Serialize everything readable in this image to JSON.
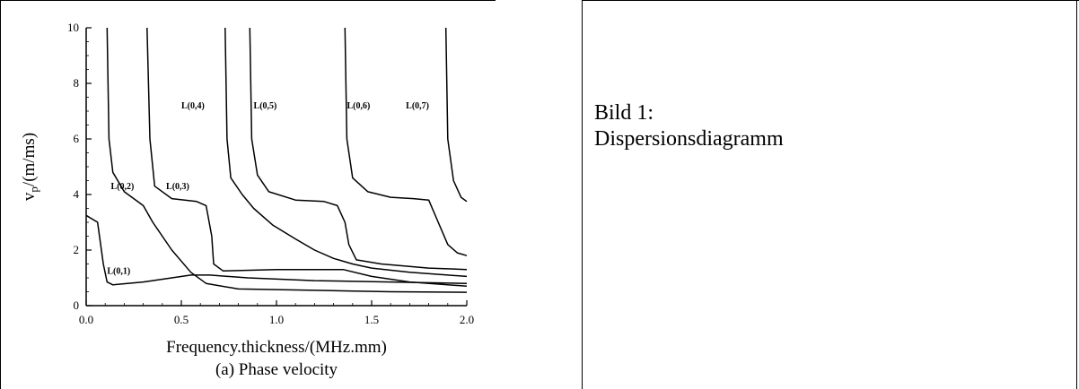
{
  "caption": {
    "line1": "Bild 1:",
    "line2": "Dispersionsdiagramm"
  },
  "chart_data": {
    "type": "line",
    "title": "",
    "subtitle": "(a) Phase velocity",
    "xlabel": "Frequency.thickness/(MHz.mm)",
    "ylabel_main": "v",
    "ylabel_sub": "p",
    "ylabel_rest": "/(m/ms)",
    "xlim": [
      0,
      2
    ],
    "ylim": [
      0,
      10
    ],
    "grid": false,
    "x_ticks": [
      {
        "value": 0,
        "label": "0.0"
      },
      {
        "value": 0.5,
        "label": "0.5"
      },
      {
        "value": 1,
        "label": "1.0"
      },
      {
        "value": 1.5,
        "label": "1.5"
      },
      {
        "value": 2,
        "label": "2.0"
      }
    ],
    "y_ticks": [
      {
        "value": 0,
        "label": "0"
      },
      {
        "value": 2,
        "label": "2"
      },
      {
        "value": 4,
        "label": "4"
      },
      {
        "value": 6,
        "label": "6"
      },
      {
        "value": 8,
        "label": "8"
      },
      {
        "value": 10,
        "label": "10"
      }
    ],
    "series": [
      {
        "name": "L(0,1)",
        "points": [
          [
            0,
            3.25
          ],
          [
            0.06,
            3.0
          ],
          [
            0.09,
            1.5
          ],
          [
            0.11,
            0.85
          ],
          [
            0.14,
            0.75
          ],
          [
            0.3,
            0.85
          ],
          [
            0.45,
            1.0
          ],
          [
            0.55,
            1.1
          ],
          [
            0.65,
            1.1
          ],
          [
            0.85,
            1.0
          ],
          [
            1.2,
            0.9
          ],
          [
            1.6,
            0.85
          ],
          [
            2.0,
            0.8
          ]
        ]
      },
      {
        "name": "L(0,2)",
        "points": [
          [
            0.11,
            10
          ],
          [
            0.12,
            6.0
          ],
          [
            0.14,
            4.8
          ],
          [
            0.2,
            4.1
          ],
          [
            0.3,
            3.6
          ],
          [
            0.35,
            3.0
          ],
          [
            0.45,
            2.0
          ],
          [
            0.55,
            1.2
          ],
          [
            0.63,
            0.8
          ],
          [
            0.8,
            0.6
          ],
          [
            1.2,
            0.55
          ],
          [
            1.6,
            0.5
          ],
          [
            2.0,
            0.48
          ]
        ]
      },
      {
        "name": "L(0,3)",
        "points": [
          [
            0.32,
            10
          ],
          [
            0.335,
            6.0
          ],
          [
            0.36,
            4.3
          ],
          [
            0.45,
            3.85
          ],
          [
            0.58,
            3.75
          ],
          [
            0.63,
            3.6
          ],
          [
            0.66,
            2.5
          ],
          [
            0.67,
            1.5
          ],
          [
            0.72,
            1.25
          ],
          [
            1.0,
            1.3
          ],
          [
            1.35,
            1.3
          ],
          [
            1.5,
            1.05
          ],
          [
            1.7,
            0.85
          ],
          [
            2.0,
            0.7
          ]
        ]
      },
      {
        "name": "L(0,4)",
        "points": [
          [
            0.73,
            10
          ],
          [
            0.74,
            6.0
          ],
          [
            0.76,
            4.6
          ],
          [
            0.82,
            4.0
          ],
          [
            0.88,
            3.5
          ],
          [
            0.98,
            2.9
          ],
          [
            1.1,
            2.4
          ],
          [
            1.2,
            2.0
          ],
          [
            1.3,
            1.7
          ],
          [
            1.4,
            1.5
          ],
          [
            1.5,
            1.35
          ],
          [
            1.7,
            1.2
          ],
          [
            2.0,
            1.05
          ]
        ]
      },
      {
        "name": "L(0,5)",
        "points": [
          [
            0.86,
            10
          ],
          [
            0.87,
            6.0
          ],
          [
            0.9,
            4.7
          ],
          [
            0.96,
            4.1
          ],
          [
            1.1,
            3.8
          ],
          [
            1.25,
            3.75
          ],
          [
            1.32,
            3.6
          ],
          [
            1.36,
            3.0
          ],
          [
            1.38,
            2.2
          ],
          [
            1.42,
            1.65
          ],
          [
            1.55,
            1.5
          ],
          [
            1.8,
            1.35
          ],
          [
            2.0,
            1.3
          ]
        ]
      },
      {
        "name": "L(0,6)",
        "points": [
          [
            1.36,
            10
          ],
          [
            1.37,
            6.0
          ],
          [
            1.4,
            4.6
          ],
          [
            1.48,
            4.1
          ],
          [
            1.6,
            3.9
          ],
          [
            1.72,
            3.85
          ],
          [
            1.8,
            3.8
          ],
          [
            1.85,
            3.0
          ],
          [
            1.9,
            2.2
          ],
          [
            1.95,
            1.9
          ],
          [
            2.0,
            1.8
          ]
        ]
      },
      {
        "name": "L(0,7)",
        "points": [
          [
            1.89,
            10
          ],
          [
            1.9,
            6.0
          ],
          [
            1.93,
            4.5
          ],
          [
            1.97,
            3.9
          ],
          [
            2.0,
            3.75
          ]
        ]
      }
    ],
    "annotations": [
      {
        "text": "L(0,1)",
        "x": 0.11,
        "y": 1.15
      },
      {
        "text": "L(0,2)",
        "x": 0.13,
        "y": 4.2
      },
      {
        "text": "L(0,3)",
        "x": 0.42,
        "y": 4.2
      },
      {
        "text": "L(0,4)",
        "x": 0.5,
        "y": 7.1
      },
      {
        "text": "L(0,5)",
        "x": 0.88,
        "y": 7.1
      },
      {
        "text": "L(0,6)",
        "x": 1.37,
        "y": 7.1
      },
      {
        "text": "L(0,7)",
        "x": 1.68,
        "y": 7.1
      }
    ]
  }
}
